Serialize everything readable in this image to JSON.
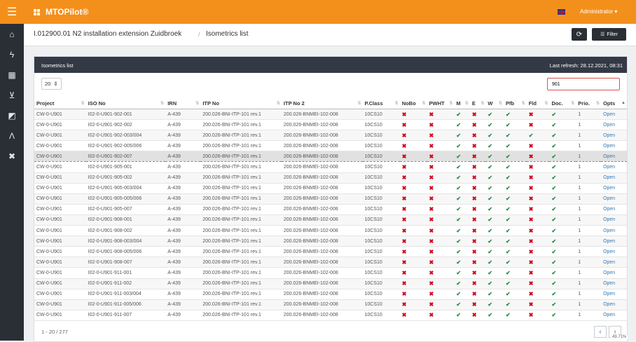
{
  "app": {
    "title": "MTOPilot®",
    "user": "Administrator ▾"
  },
  "breadcrumb": {
    "project": "I.012900.01 N2 installation extension Zuidbroek",
    "separator": "/",
    "page": "Isometrics list"
  },
  "toolbar": {
    "refresh_icon": "refresh-icon",
    "filter_label": "Filter"
  },
  "panel": {
    "title": "Isometrics list",
    "last_refresh": "Last refresh: 28.12.2021, 08:31"
  },
  "controls": {
    "page_size": "20",
    "search_value": "901"
  },
  "columns": [
    "Project",
    "ISO No",
    "IRN",
    "ITP No",
    "ITP No 2",
    "P.Class",
    "NoBo",
    "PWHT",
    "M",
    "E",
    "W",
    "Pfb",
    "Fld",
    "Doc.",
    "Prio.",
    "Opts"
  ],
  "rows": [
    [
      "CW-0-U901",
      "I02-0-U901-902-001",
      "A-439",
      "200.026-BNI-ITP-101 rev.1",
      "200.026-BNMEI-102-008",
      "10CS10",
      "✖",
      "✖",
      "✔",
      "✖",
      "✔",
      "✔",
      "✖",
      "✔",
      "1",
      "Open"
    ],
    [
      "CW-0-U901",
      "I02-0-U901-902-002",
      "A-439",
      "200.026-BNI-ITP-101 rev.1",
      "200.026-BNMEI-102-008",
      "10CS10",
      "✖",
      "✖",
      "✔",
      "✖",
      "✔",
      "✔",
      "✖",
      "✔",
      "1",
      "Open"
    ],
    [
      "CW-0-U901",
      "I02-0-U901-902-003/004",
      "A-439",
      "200.026-BNI-ITP-101 rev.1",
      "200.026-BNMEI-102-008",
      "10CS10",
      "✖",
      "✖",
      "✔",
      "✖",
      "✔",
      "✔",
      "✔",
      "✔",
      "1",
      "Open"
    ],
    [
      "CW-0-U901",
      "I02-0-U901-902-005/006",
      "A-439",
      "200.026-BNI-ITP-101 rev.1",
      "200.026-BNMEI-102-008",
      "10CS10",
      "✖",
      "✖",
      "✔",
      "✖",
      "✔",
      "✔",
      "✖",
      "✔",
      "1",
      "Open"
    ],
    [
      "CW-0-U901",
      "I02-0-U901-902-007",
      "A-439",
      "200.026-BNI-ITP-101 rev.1",
      "200.026-BNMEI-102-008",
      "10CS10",
      "✖",
      "✖",
      "✔",
      "✖",
      "✔",
      "✔",
      "✖",
      "✔",
      "1",
      "Open"
    ],
    [
      "CW-0-U901",
      "I02-0-U901-905-001",
      "A-439",
      "200.026-BNI-ITP-101 rev.1",
      "200.026-BNMEI-102-008",
      "10CS10",
      "✖",
      "✖",
      "✔",
      "✖",
      "✔",
      "✔",
      "✖",
      "✔",
      "1",
      "Open"
    ],
    [
      "CW-0-U901",
      "I02-0-U901-905-002",
      "A-439",
      "200.026-BNI-ITP-101 rev.1",
      "200.026-BNMEI-102-008",
      "10CS10",
      "✖",
      "✖",
      "✔",
      "✖",
      "✔",
      "✔",
      "✖",
      "✔",
      "1",
      "Open"
    ],
    [
      "CW-0-U901",
      "I02-0-U901-905-003/004",
      "A-439",
      "200.026-BNI-ITP-101 rev.1",
      "200.026-BNMEI-102-008",
      "10CS10",
      "✖",
      "✖",
      "✔",
      "✖",
      "✔",
      "✔",
      "✖",
      "✔",
      "1",
      "Open"
    ],
    [
      "CW-0-U901",
      "I02-0-U901-905-005/006",
      "A-439",
      "200.026-BNI-ITP-101 rev.1",
      "200.026-BNMEI-102-008",
      "10CS10",
      "✖",
      "✖",
      "✔",
      "✖",
      "✔",
      "✔",
      "✖",
      "✔",
      "1",
      "Open"
    ],
    [
      "CW-0-U901",
      "I02-0-U901-905-007",
      "A-439",
      "200.026-BNI-ITP-101 rev.1",
      "200.026-BNMEI-102-008",
      "10CS10",
      "✖",
      "✖",
      "✔",
      "✖",
      "✔",
      "✔",
      "✖",
      "✔",
      "1",
      "Open"
    ],
    [
      "CW-0-U901",
      "I02-0-U901-908-001",
      "A-439",
      "200.026-BNI-ITP-101 rev.1",
      "200.026-BNMEI-102-008",
      "10CS10",
      "✖",
      "✖",
      "✔",
      "✖",
      "✔",
      "✔",
      "✖",
      "✔",
      "1",
      "Open"
    ],
    [
      "CW-0-U901",
      "I02-0-U901-908-002",
      "A-439",
      "200.026-BNI-ITP-101 rev.1",
      "200.026-BNMEI-102-008",
      "10CS10",
      "✖",
      "✖",
      "✔",
      "✖",
      "✔",
      "✔",
      "✖",
      "✔",
      "1",
      "Open"
    ],
    [
      "CW-0-U901",
      "I02-0-U901-908-003/004",
      "A-439",
      "200.026-BNI-ITP-101 rev.1",
      "200.026-BNMEI-102-008",
      "10CS10",
      "✖",
      "✖",
      "✔",
      "✖",
      "✔",
      "✔",
      "✖",
      "✔",
      "1",
      "Open"
    ],
    [
      "CW-0-U901",
      "I02-0-U901-908-005/006",
      "A-439",
      "200.026-BNI-ITP-101 rev.1",
      "200.026-BNMEI-102-008",
      "10CS10",
      "✖",
      "✖",
      "✔",
      "✖",
      "✔",
      "✔",
      "✖",
      "✔",
      "1",
      "Open"
    ],
    [
      "CW-0-U901",
      "I02-0-U901-908-007",
      "A-439",
      "200.026-BNI-ITP-101 rev.1",
      "200.026-BNMEI-102-008",
      "10CS10",
      "✖",
      "✖",
      "✔",
      "✖",
      "✔",
      "✔",
      "✖",
      "✔",
      "1",
      "Open"
    ],
    [
      "CW-0-U901",
      "I02-0-U901-911-001",
      "A-439",
      "200.026-BNI-ITP-101 rev.1",
      "200.026-BNMEI-102-008",
      "10CS10",
      "✖",
      "✖",
      "✔",
      "✖",
      "✔",
      "✔",
      "✖",
      "✔",
      "1",
      "Open"
    ],
    [
      "CW-0-U901",
      "I02-0-U901-911-002",
      "A-439",
      "200.026-BNI-ITP-101 rev.1",
      "200.026-BNMEI-102-008",
      "10CS10",
      "✖",
      "✖",
      "✔",
      "✖",
      "✔",
      "✔",
      "✖",
      "✔",
      "1",
      "Open"
    ],
    [
      "CW-0-U901",
      "I02-0-U901-911-003/004",
      "A-439",
      "200.026-BNI-ITP-101 rev.1",
      "200.026-BNMEI-102-008",
      "10CS10",
      "✖",
      "✖",
      "✔",
      "✖",
      "✔",
      "✔",
      "✖",
      "✔",
      "1",
      "Open"
    ],
    [
      "CW-0-U901",
      "I02-0-U901-911-005/006",
      "A-439",
      "200.026-BNI-ITP-101 rev.1",
      "200.026-BNMEI-102-008",
      "10CS10",
      "✖",
      "✖",
      "✔",
      "✖",
      "✔",
      "✔",
      "✖",
      "✔",
      "1",
      "Open"
    ],
    [
      "CW-0-U901",
      "I02-0-U901-911-007",
      "A-439",
      "200.026-BNI-ITP-101 rev.1",
      "200.026-BNMEI-102-008",
      "10CS10",
      "✖",
      "✖",
      "✔",
      "✖",
      "✔",
      "✔",
      "✖",
      "✔",
      "1",
      "Open"
    ]
  ],
  "pager": {
    "info": "1 - 20 / 277",
    "prev": "‹",
    "next": "›"
  },
  "zoom": "49.71%",
  "colors": {
    "topbar": "#f3901c",
    "sidebar": "#2a2f36",
    "ok": "#1e8e3e",
    "no": "#d0021b",
    "warn": "#f0a020",
    "link": "#337ab7"
  }
}
